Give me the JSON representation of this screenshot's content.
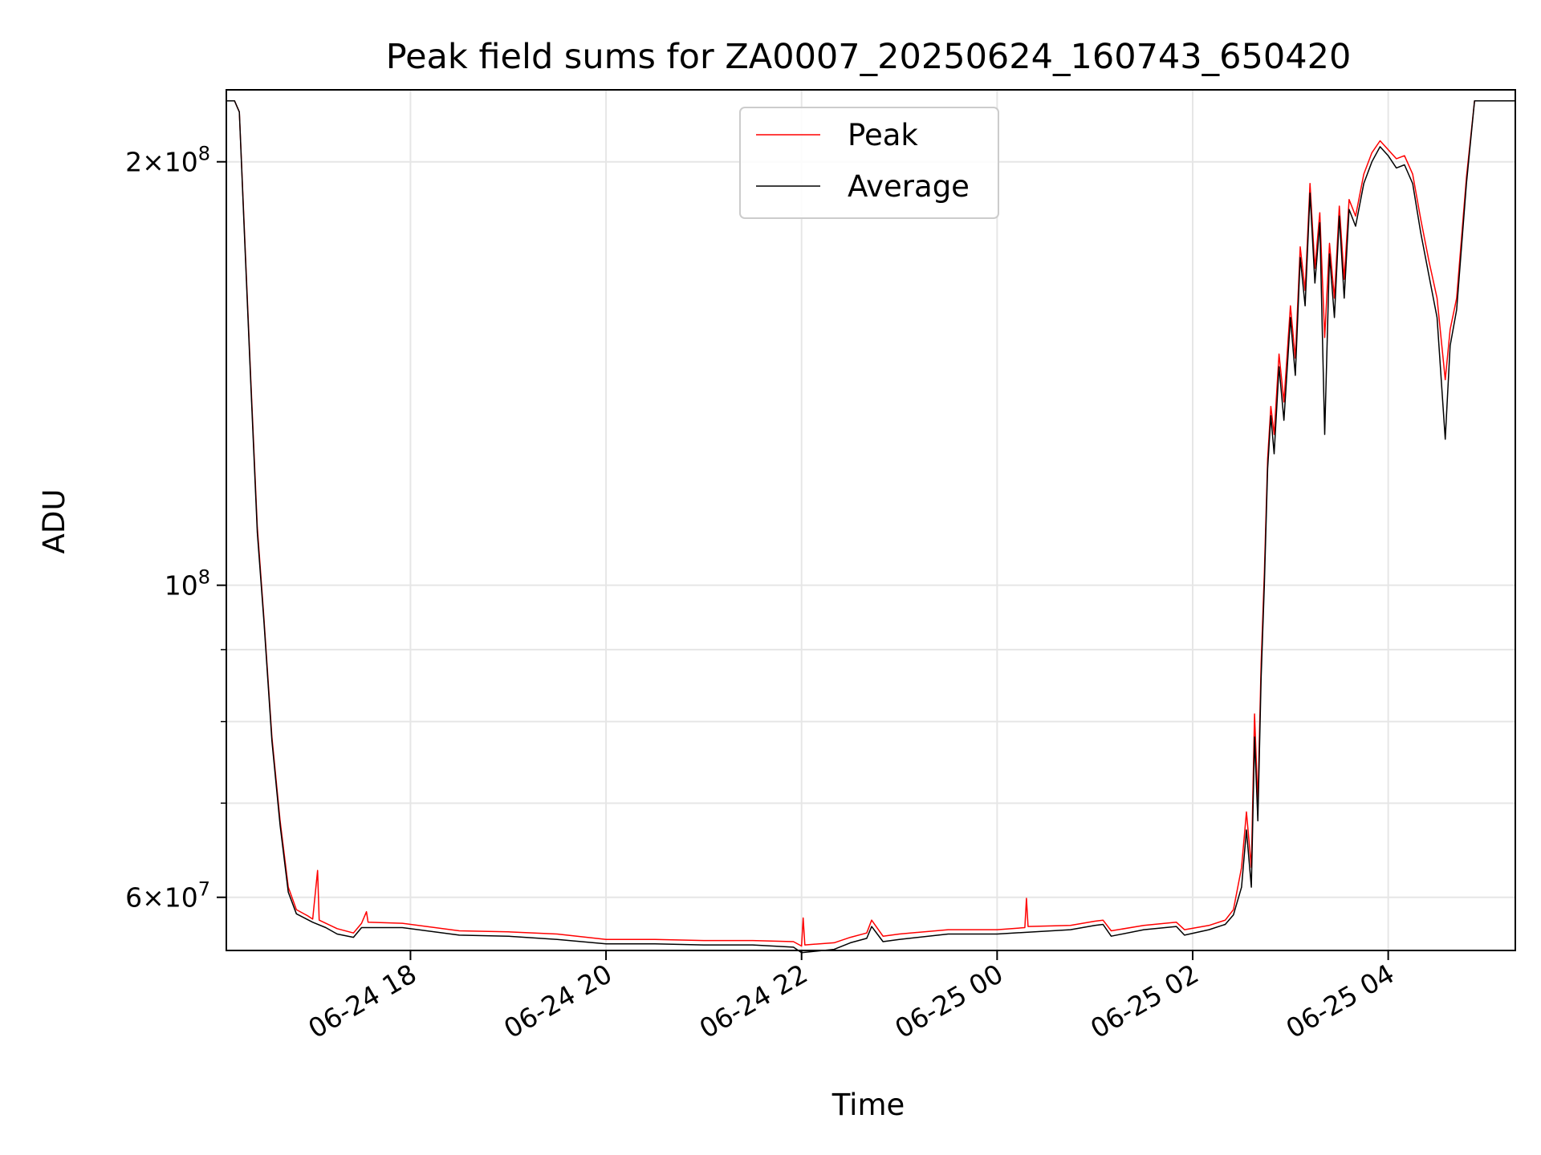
{
  "chart_data": {
    "type": "line",
    "title": "Peak field sums for ZA0007_20250624_160743_650420",
    "xlabel": "Time",
    "ylabel": "ADU",
    "y_scale": "log",
    "ylim": [
      55000000,
      225000000
    ],
    "xlim": [
      "2025-06-24 16:07",
      "2025-06-25 05:18"
    ],
    "grid": true,
    "legend": {
      "position": "top-center"
    },
    "x_ticks": [
      {
        "t": "2025-06-24 18:00",
        "label": "06-24 18"
      },
      {
        "t": "2025-06-24 20:00",
        "label": "06-24 20"
      },
      {
        "t": "2025-06-24 22:00",
        "label": "06-24 22"
      },
      {
        "t": "2025-06-25 00:00",
        "label": "06-25 00"
      },
      {
        "t": "2025-06-25 02:00",
        "label": "06-25 02"
      },
      {
        "t": "2025-06-25 04:00",
        "label": "06-25 04"
      }
    ],
    "y_major_ticks": [
      {
        "v": 60000000,
        "mant": "6",
        "exp": "7"
      },
      {
        "v": 100000000,
        "mant": "",
        "exp": "8"
      },
      {
        "v": 200000000,
        "mant": "2",
        "exp": "8"
      }
    ],
    "y_minor_ticks": [
      70000000,
      80000000,
      90000000
    ],
    "series": [
      {
        "name": "Peak",
        "color": "#ff0000",
        "points": [
          [
            "2025-06-24 16:07",
            221000000
          ],
          [
            "2025-06-24 16:12",
            221000000
          ],
          [
            "2025-06-24 16:15",
            217000000
          ],
          [
            "2025-06-24 16:18",
            180000000
          ],
          [
            "2025-06-24 16:22",
            140000000
          ],
          [
            "2025-06-24 16:26",
            110000000
          ],
          [
            "2025-06-24 16:30",
            95000000
          ],
          [
            "2025-06-24 16:35",
            78000000
          ],
          [
            "2025-06-24 16:40",
            68000000
          ],
          [
            "2025-06-24 16:45",
            61000000
          ],
          [
            "2025-06-24 16:50",
            58800000
          ],
          [
            "2025-06-24 16:57",
            58200000
          ],
          [
            "2025-06-24 17:00",
            57900000
          ],
          [
            "2025-06-24 17:03",
            62700000
          ],
          [
            "2025-06-24 17:04",
            57800000
          ],
          [
            "2025-06-24 17:15",
            57000000
          ],
          [
            "2025-06-24 17:25",
            56600000
          ],
          [
            "2025-06-24 17:30",
            57500000
          ],
          [
            "2025-06-24 17:33",
            58600000
          ],
          [
            "2025-06-24 17:34",
            57600000
          ],
          [
            "2025-06-24 17:55",
            57500000
          ],
          [
            "2025-06-24 18:30",
            56800000
          ],
          [
            "2025-06-24 19:00",
            56700000
          ],
          [
            "2025-06-24 19:30",
            56500000
          ],
          [
            "2025-06-24 20:00",
            56000000
          ],
          [
            "2025-06-24 20:30",
            56000000
          ],
          [
            "2025-06-24 21:00",
            55900000
          ],
          [
            "2025-06-24 21:30",
            55900000
          ],
          [
            "2025-06-24 21:55",
            55800000
          ],
          [
            "2025-06-24 22:00",
            55400000
          ],
          [
            "2025-06-24 22:01",
            58000000
          ],
          [
            "2025-06-24 22:02",
            55500000
          ],
          [
            "2025-06-24 22:20",
            55700000
          ],
          [
            "2025-06-24 22:30",
            56200000
          ],
          [
            "2025-06-24 22:40",
            56600000
          ],
          [
            "2025-06-24 22:43",
            57800000
          ],
          [
            "2025-06-24 22:50",
            56300000
          ],
          [
            "2025-06-24 23:00",
            56500000
          ],
          [
            "2025-06-24 23:30",
            56900000
          ],
          [
            "2025-06-25 00:00",
            56900000
          ],
          [
            "2025-06-25 00:17",
            57100000
          ],
          [
            "2025-06-25 00:18",
            59900000
          ],
          [
            "2025-06-25 00:19",
            57200000
          ],
          [
            "2025-06-25 00:45",
            57300000
          ],
          [
            "2025-06-25 01:00",
            57700000
          ],
          [
            "2025-06-25 01:05",
            57800000
          ],
          [
            "2025-06-25 01:10",
            56800000
          ],
          [
            "2025-06-25 01:30",
            57300000
          ],
          [
            "2025-06-25 01:50",
            57600000
          ],
          [
            "2025-06-25 01:55",
            56900000
          ],
          [
            "2025-06-25 02:10",
            57300000
          ],
          [
            "2025-06-25 02:20",
            57800000
          ],
          [
            "2025-06-25 02:25",
            58800000
          ],
          [
            "2025-06-25 02:30",
            63000000
          ],
          [
            "2025-06-25 02:33",
            69000000
          ],
          [
            "2025-06-25 02:36",
            63000000
          ],
          [
            "2025-06-25 02:38",
            81000000
          ],
          [
            "2025-06-25 02:40",
            70000000
          ],
          [
            "2025-06-25 02:42",
            88000000
          ],
          [
            "2025-06-25 02:44",
            102000000
          ],
          [
            "2025-06-25 02:46",
            123000000
          ],
          [
            "2025-06-25 02:48",
            134000000
          ],
          [
            "2025-06-25 02:50",
            128000000
          ],
          [
            "2025-06-25 02:53",
            146000000
          ],
          [
            "2025-06-25 02:56",
            135000000
          ],
          [
            "2025-06-25 03:00",
            158000000
          ],
          [
            "2025-06-25 03:03",
            145000000
          ],
          [
            "2025-06-25 03:06",
            174000000
          ],
          [
            "2025-06-25 03:09",
            162000000
          ],
          [
            "2025-06-25 03:12",
            193000000
          ],
          [
            "2025-06-25 03:15",
            168000000
          ],
          [
            "2025-06-25 03:18",
            184000000
          ],
          [
            "2025-06-25 03:21",
            150000000
          ],
          [
            "2025-06-25 03:24",
            175000000
          ],
          [
            "2025-06-25 03:27",
            160000000
          ],
          [
            "2025-06-25 03:30",
            186000000
          ],
          [
            "2025-06-25 03:33",
            165000000
          ],
          [
            "2025-06-25 03:36",
            188000000
          ],
          [
            "2025-06-25 03:40",
            183000000
          ],
          [
            "2025-06-25 03:45",
            196000000
          ],
          [
            "2025-06-25 03:50",
            203000000
          ],
          [
            "2025-06-25 03:55",
            207000000
          ],
          [
            "2025-06-25 04:00",
            204000000
          ],
          [
            "2025-06-25 04:05",
            201000000
          ],
          [
            "2025-06-25 04:10",
            202000000
          ],
          [
            "2025-06-25 04:15",
            196000000
          ],
          [
            "2025-06-25 04:20",
            182000000
          ],
          [
            "2025-06-25 04:25",
            170000000
          ],
          [
            "2025-06-25 04:30",
            160000000
          ],
          [
            "2025-06-25 04:35",
            140000000
          ],
          [
            "2025-06-25 04:38",
            152000000
          ],
          [
            "2025-06-25 04:42",
            160000000
          ],
          [
            "2025-06-25 04:48",
            195000000
          ],
          [
            "2025-06-25 04:53",
            221000000
          ],
          [
            "2025-06-25 05:18",
            221000000
          ]
        ]
      },
      {
        "name": "Average",
        "color": "#000000",
        "points": [
          [
            "2025-06-24 16:07",
            221000000
          ],
          [
            "2025-06-24 16:12",
            221000000
          ],
          [
            "2025-06-24 16:15",
            217000000
          ],
          [
            "2025-06-24 16:18",
            179000000
          ],
          [
            "2025-06-24 16:22",
            139000000
          ],
          [
            "2025-06-24 16:26",
            109000000
          ],
          [
            "2025-06-24 16:30",
            94500000
          ],
          [
            "2025-06-24 16:35",
            77500000
          ],
          [
            "2025-06-24 16:40",
            67500000
          ],
          [
            "2025-06-24 16:45",
            60500000
          ],
          [
            "2025-06-24 16:50",
            58400000
          ],
          [
            "2025-06-24 17:00",
            57600000
          ],
          [
            "2025-06-24 17:08",
            57100000
          ],
          [
            "2025-06-24 17:15",
            56500000
          ],
          [
            "2025-06-24 17:25",
            56200000
          ],
          [
            "2025-06-24 17:30",
            57100000
          ],
          [
            "2025-06-24 17:55",
            57100000
          ],
          [
            "2025-06-24 18:30",
            56400000
          ],
          [
            "2025-06-24 19:00",
            56300000
          ],
          [
            "2025-06-24 19:30",
            56000000
          ],
          [
            "2025-06-24 20:00",
            55600000
          ],
          [
            "2025-06-24 20:30",
            55600000
          ],
          [
            "2025-06-24 21:00",
            55500000
          ],
          [
            "2025-06-24 21:30",
            55500000
          ],
          [
            "2025-06-24 21:55",
            55300000
          ],
          [
            "2025-06-24 22:00",
            54800000
          ],
          [
            "2025-06-24 22:20",
            55100000
          ],
          [
            "2025-06-24 22:30",
            55700000
          ],
          [
            "2025-06-24 22:40",
            56100000
          ],
          [
            "2025-06-24 22:43",
            57200000
          ],
          [
            "2025-06-24 22:50",
            55800000
          ],
          [
            "2025-06-24 23:00",
            56000000
          ],
          [
            "2025-06-24 23:30",
            56500000
          ],
          [
            "2025-06-25 00:00",
            56500000
          ],
          [
            "2025-06-25 00:45",
            56900000
          ],
          [
            "2025-06-25 01:00",
            57300000
          ],
          [
            "2025-06-25 01:05",
            57400000
          ],
          [
            "2025-06-25 01:10",
            56300000
          ],
          [
            "2025-06-25 01:30",
            56900000
          ],
          [
            "2025-06-25 01:50",
            57200000
          ],
          [
            "2025-06-25 01:55",
            56400000
          ],
          [
            "2025-06-25 02:10",
            56900000
          ],
          [
            "2025-06-25 02:20",
            57400000
          ],
          [
            "2025-06-25 02:25",
            58300000
          ],
          [
            "2025-06-25 02:30",
            61000000
          ],
          [
            "2025-06-25 02:33",
            67000000
          ],
          [
            "2025-06-25 02:36",
            61000000
          ],
          [
            "2025-06-25 02:38",
            78000000
          ],
          [
            "2025-06-25 02:40",
            68000000
          ],
          [
            "2025-06-25 02:42",
            86000000
          ],
          [
            "2025-06-25 02:44",
            100000000
          ],
          [
            "2025-06-25 02:46",
            121000000
          ],
          [
            "2025-06-25 02:48",
            132000000
          ],
          [
            "2025-06-25 02:50",
            124000000
          ],
          [
            "2025-06-25 02:53",
            143000000
          ],
          [
            "2025-06-25 02:56",
            131000000
          ],
          [
            "2025-06-25 03:00",
            155000000
          ],
          [
            "2025-06-25 03:03",
            141000000
          ],
          [
            "2025-06-25 03:06",
            171000000
          ],
          [
            "2025-06-25 03:09",
            158000000
          ],
          [
            "2025-06-25 03:12",
            190000000
          ],
          [
            "2025-06-25 03:15",
            164000000
          ],
          [
            "2025-06-25 03:18",
            181000000
          ],
          [
            "2025-06-25 03:21",
            128000000
          ],
          [
            "2025-06-25 03:24",
            172000000
          ],
          [
            "2025-06-25 03:27",
            155000000
          ],
          [
            "2025-06-25 03:30",
            183000000
          ],
          [
            "2025-06-25 03:33",
            160000000
          ],
          [
            "2025-06-25 03:36",
            185000000
          ],
          [
            "2025-06-25 03:40",
            180000000
          ],
          [
            "2025-06-25 03:45",
            193000000
          ],
          [
            "2025-06-25 03:50",
            200000000
          ],
          [
            "2025-06-25 03:55",
            205000000
          ],
          [
            "2025-06-25 04:00",
            202000000
          ],
          [
            "2025-06-25 04:05",
            198000000
          ],
          [
            "2025-06-25 04:10",
            199000000
          ],
          [
            "2025-06-25 04:15",
            193000000
          ],
          [
            "2025-06-25 04:20",
            178000000
          ],
          [
            "2025-06-25 04:25",
            166000000
          ],
          [
            "2025-06-25 04:30",
            155000000
          ],
          [
            "2025-06-25 04:35",
            127000000
          ],
          [
            "2025-06-25 04:38",
            148000000
          ],
          [
            "2025-06-25 04:42",
            157000000
          ],
          [
            "2025-06-25 04:48",
            193000000
          ],
          [
            "2025-06-25 04:53",
            221000000
          ],
          [
            "2025-06-25 05:18",
            221000000
          ]
        ]
      }
    ]
  }
}
